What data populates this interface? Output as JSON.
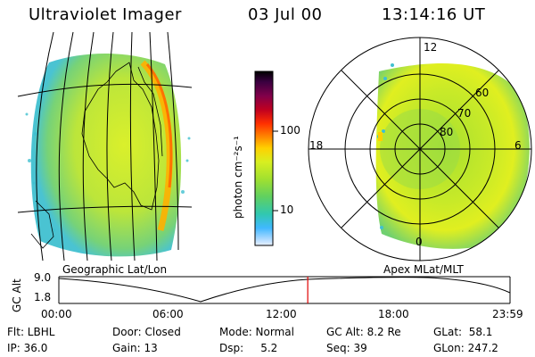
{
  "header": {
    "title": "Ultraviolet Imager",
    "date": "03 Jul 00",
    "time": "13:14:16 UT"
  },
  "colorbar": {
    "unit_label": "photon cm⁻²s⁻¹",
    "ticks": [
      "100",
      "10"
    ],
    "colors": [
      "#000000",
      "#3a0040",
      "#80004a",
      "#c00020",
      "#ff3000",
      "#ff8c00",
      "#ffd000",
      "#d8ef20",
      "#a0e030",
      "#60d060",
      "#30c8b0",
      "#40b8ff",
      "#a8d8ff",
      "#e8f0ff"
    ]
  },
  "left_map": {
    "label": "Geographic Lat/Lon"
  },
  "right_map": {
    "label": "Apex MLat/MLT",
    "mlt_labels": [
      "12",
      "18",
      "6",
      "0"
    ],
    "lat_labels": [
      "60",
      "70",
      "80"
    ]
  },
  "altitude_plot": {
    "ylabel": "GC Alt",
    "yticks": [
      "9.0",
      "1.8"
    ],
    "xticks": [
      "00:00",
      "06:00",
      "12:00",
      "18:00",
      "23:59"
    ],
    "current_marker_hour": 13.24,
    "marker_color": "#e00000"
  },
  "footer": {
    "flt": "Flt: LBHL",
    "door": "Door: Closed",
    "mode": "Mode: Normal",
    "gcalt": "GC Alt: 8.2 Re",
    "glat": "GLat:  58.1",
    "ip": "IP: 36.0",
    "gain": "Gain: 13",
    "dsp": "Dsp:     5.2",
    "seq": "Seq: 39",
    "glon": "GLon: 247.2"
  }
}
